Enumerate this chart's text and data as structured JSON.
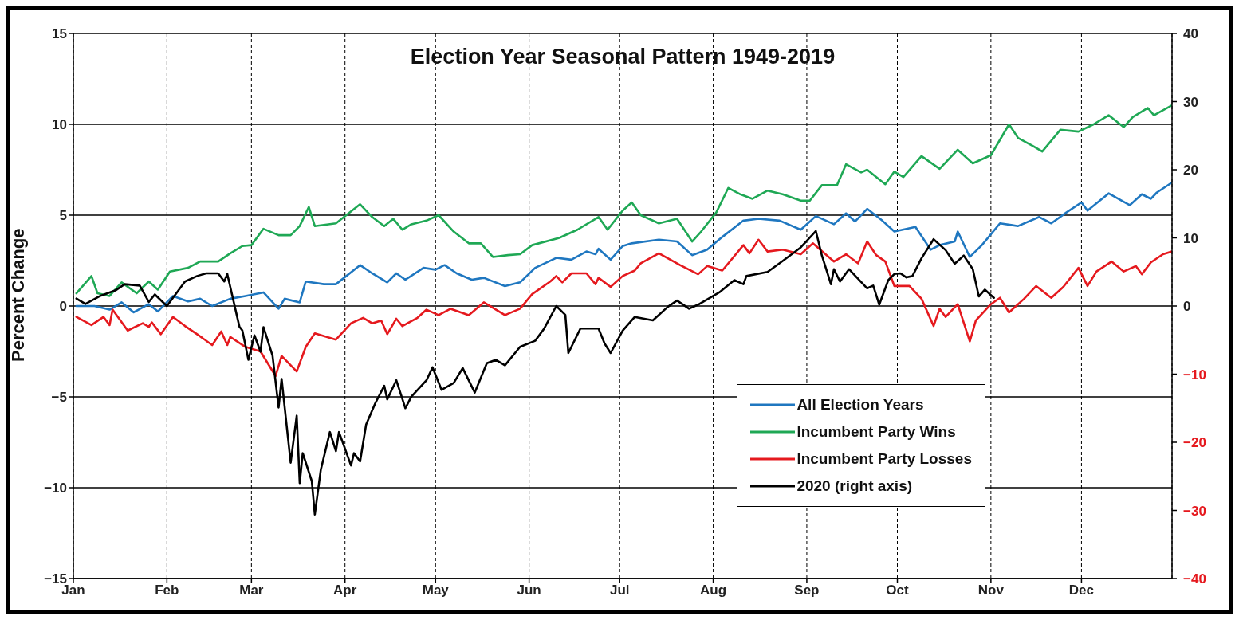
{
  "chart_data": {
    "type": "line",
    "title": "Election Year Seasonal Pattern 1949-2019",
    "ylabel": "Percent Change",
    "xlim": [
      "--01-01",
      "--12-31"
    ],
    "xticks": [
      {
        "value": "--01-01",
        "label": "Jan"
      },
      {
        "value": "--02-01",
        "label": "Feb"
      },
      {
        "value": "--03-01",
        "label": "Mar"
      },
      {
        "value": "--04-01",
        "label": "Apr"
      },
      {
        "value": "--05-01",
        "label": "May"
      },
      {
        "value": "--06-01",
        "label": "Jun"
      },
      {
        "value": "--07-01",
        "label": "Jul"
      },
      {
        "value": "--08-01",
        "label": "Aug"
      },
      {
        "value": "--09-01",
        "label": "Sep"
      },
      {
        "value": "--10-01",
        "label": "Oct"
      },
      {
        "value": "--11-01",
        "label": "Nov"
      },
      {
        "value": "--12-01",
        "label": "Dec"
      }
    ],
    "ylim": [
      -15,
      15
    ],
    "yticks": [
      15,
      10,
      5,
      0,
      {
        "value": -5,
        "label": "−5"
      },
      {
        "value": -10,
        "label": "−10"
      },
      {
        "value": -15,
        "label": "−15"
      }
    ],
    "y2lim": [
      -40,
      40
    ],
    "y2ticks": [
      40,
      30,
      20,
      10,
      0,
      {
        "value": -10,
        "label": "−10"
      },
      {
        "value": -20,
        "label": "−20"
      },
      {
        "value": -30,
        "label": "−30"
      },
      {
        "value": -40,
        "label": "−40"
      }
    ],
    "grid": true,
    "legend": "bottom right",
    "marker": "none",
    "line_style": "solid",
    "series": [
      {
        "name": "All Election Years",
        "color": "#1f77c0",
        "x": [
          "--01-02",
          "--01-08",
          "--01-13",
          "--01-17",
          "--01-21",
          "--01-26",
          "--01-29",
          "--02-03",
          "--02-08",
          "--02-12",
          "--02-16",
          "--02-22",
          "--02-27",
          "--03-05",
          "--03-10",
          "--03-12",
          "--03-17",
          "--03-19",
          "--03-25",
          "--03-29",
          "--04-06",
          "--04-10",
          "--04-15",
          "--04-18",
          "--04-21",
          "--04-27",
          "--05-01",
          "--05-04",
          "--05-08",
          "--05-13",
          "--05-17",
          "--05-24",
          "--05-29",
          "--06-03",
          "--06-10",
          "--06-15",
          "--06-20",
          "--06-23",
          "--06-24",
          "--06-28",
          "--07-02",
          "--07-05",
          "--07-14",
          "--07-20",
          "--07-25",
          "--07-30",
          "--08-04",
          "--08-11",
          "--08-16",
          "--08-23",
          "--08-30",
          "--09-04",
          "--09-10",
          "--09-14",
          "--09-17",
          "--09-21",
          "--09-26",
          "--09-30",
          "--10-07",
          "--10-12",
          "--10-15",
          "--10-20",
          "--10-21",
          "--10-25",
          "--10-29",
          "--11-04",
          "--11-10",
          "--11-17",
          "--11-21",
          "--11-26",
          "--12-01",
          "--12-03",
          "--12-10",
          "--12-17",
          "--12-21",
          "--12-24",
          "--12-26",
          "--12-31"
        ],
        "values": [
          0,
          0,
          -0.2,
          0.2,
          -0.35,
          0.1,
          -0.3,
          0.55,
          0.25,
          0.4,
          0,
          0.4,
          0.55,
          0.75,
          -0.15,
          0.4,
          0.2,
          1.35,
          1.2,
          1.2,
          2.25,
          1.8,
          1.3,
          1.8,
          1.45,
          2.1,
          2.0,
          2.25,
          1.8,
          1.45,
          1.55,
          1.1,
          1.3,
          2.1,
          2.65,
          2.55,
          3.0,
          2.85,
          3.15,
          2.55,
          3.3,
          3.45,
          3.65,
          3.55,
          2.8,
          3.1,
          3.8,
          4.7,
          4.8,
          4.7,
          4.2,
          4.95,
          4.5,
          5.1,
          4.65,
          5.35,
          4.7,
          4.1,
          4.35,
          3.1,
          3.35,
          3.55,
          4.1,
          2.7,
          3.35,
          4.55,
          4.4,
          4.9,
          4.55,
          5.15,
          5.7,
          5.25,
          6.2,
          5.55,
          6.15,
          5.9,
          6.25,
          6.8
        ]
      },
      {
        "name": "Incumbent Party Wins",
        "color": "#1fa855",
        "x": [
          "--01-02",
          "--01-07",
          "--01-09",
          "--01-13",
          "--01-17",
          "--01-22",
          "--01-26",
          "--01-29",
          "--02-02",
          "--02-08",
          "--02-12",
          "--02-18",
          "--02-22",
          "--02-26",
          "--03-01",
          "--03-05",
          "--03-10",
          "--03-14",
          "--03-17",
          "--03-20",
          "--03-22",
          "--03-29",
          "--04-06",
          "--04-10",
          "--04-14",
          "--04-17",
          "--04-20",
          "--04-23",
          "--04-28",
          "--05-02",
          "--05-07",
          "--05-12",
          "--05-16",
          "--05-20",
          "--05-25",
          "--05-29",
          "--06-02",
          "--06-11",
          "--06-17",
          "--06-24",
          "--06-27",
          "--07-02",
          "--07-05",
          "--07-08",
          "--07-14",
          "--07-20",
          "--07-25",
          "--07-28",
          "--08-02",
          "--08-06",
          "--08-10",
          "--08-14",
          "--08-19",
          "--08-24",
          "--08-30",
          "--09-02",
          "--09-06",
          "--09-11",
          "--09-14",
          "--09-19",
          "--09-21",
          "--09-27",
          "--09-30",
          "--10-03",
          "--10-09",
          "--10-15",
          "--10-21",
          "--10-26",
          "--11-01",
          "--11-07",
          "--11-10",
          "--11-15",
          "--11-18",
          "--11-24",
          "--11-30",
          "--12-05",
          "--12-10",
          "--12-15",
          "--12-18",
          "--12-23",
          "--12-25",
          "--12-31"
        ],
        "values": [
          0.7,
          1.65,
          0.7,
          0.55,
          1.3,
          0.7,
          1.35,
          0.9,
          1.9,
          2.1,
          2.45,
          2.45,
          2.9,
          3.3,
          3.35,
          4.25,
          3.9,
          3.9,
          4.4,
          5.45,
          4.4,
          4.55,
          5.6,
          4.9,
          4.4,
          4.8,
          4.2,
          4.5,
          4.7,
          5.0,
          4.1,
          3.45,
          3.45,
          2.7,
          2.8,
          2.85,
          3.35,
          3.75,
          4.2,
          4.9,
          4.2,
          5.25,
          5.7,
          5.0,
          4.55,
          4.8,
          3.55,
          4.1,
          5.15,
          6.5,
          6.15,
          5.9,
          6.35,
          6.15,
          5.8,
          5.8,
          6.65,
          6.65,
          7.8,
          7.35,
          7.5,
          6.7,
          7.4,
          7.1,
          8.25,
          7.55,
          8.6,
          7.85,
          8.3,
          10.0,
          9.25,
          8.8,
          8.5,
          9.7,
          9.6,
          10.0,
          10.5,
          9.85,
          10.4,
          10.9,
          10.5,
          11.05
        ]
      },
      {
        "name": "Incumbent Party Losses",
        "color": "#e5191e",
        "x": [
          "--01-02",
          "--01-07",
          "--01-11",
          "--01-13",
          "--01-14",
          "--01-19",
          "--01-24",
          "--01-26",
          "--01-27",
          "--01-30",
          "--02-03",
          "--02-07",
          "--02-11",
          "--02-16",
          "--02-19",
          "--02-21",
          "--02-22",
          "--02-27",
          "--03-04",
          "--03-09",
          "--03-11",
          "--03-16",
          "--03-19",
          "--03-22",
          "--03-29",
          "--04-03",
          "--04-07",
          "--04-10",
          "--04-13",
          "--04-15",
          "--04-18",
          "--04-20",
          "--04-25",
          "--04-28",
          "--05-02",
          "--05-06",
          "--05-12",
          "--05-17",
          "--05-24",
          "--05-29",
          "--06-02",
          "--06-08",
          "--06-10",
          "--06-12",
          "--06-15",
          "--06-20",
          "--06-23",
          "--06-24",
          "--06-28",
          "--07-02",
          "--07-06",
          "--07-08",
          "--07-14",
          "--07-21",
          "--07-27",
          "--07-30",
          "--08-04",
          "--08-11",
          "--08-13",
          "--08-16",
          "--08-19",
          "--08-24",
          "--08-30",
          "--09-03",
          "--09-10",
          "--09-14",
          "--09-18",
          "--09-21",
          "--09-24",
          "--09-27",
          "--09-30",
          "--10-05",
          "--10-09",
          "--10-13",
          "--10-15",
          "--10-17",
          "--10-21",
          "--10-25",
          "--10-27",
          "--11-01",
          "--11-04",
          "--11-07",
          "--11-12",
          "--11-16",
          "--11-21",
          "--11-25",
          "--11-30",
          "--12-03",
          "--12-06",
          "--12-11",
          "--12-15",
          "--12-19",
          "--12-21",
          "--12-24",
          "--12-28",
          "--12-31"
        ],
        "values": [
          -0.6,
          -1.05,
          -0.6,
          -1.05,
          -0.2,
          -1.35,
          -0.95,
          -1.15,
          -0.9,
          -1.55,
          -0.6,
          -1.1,
          -1.55,
          -2.15,
          -1.4,
          -2.15,
          -1.7,
          -2.25,
          -2.5,
          -3.85,
          -2.75,
          -3.6,
          -2.25,
          -1.5,
          -1.85,
          -0.95,
          -0.65,
          -0.95,
          -0.8,
          -1.55,
          -0.7,
          -1.1,
          -0.65,
          -0.2,
          -0.5,
          -0.15,
          -0.5,
          0.2,
          -0.5,
          -0.15,
          0.65,
          1.35,
          1.65,
          1.3,
          1.8,
          1.8,
          1.2,
          1.55,
          1.05,
          1.65,
          1.95,
          2.35,
          2.9,
          2.25,
          1.75,
          2.2,
          1.95,
          3.35,
          2.9,
          3.65,
          3.0,
          3.1,
          2.85,
          3.45,
          2.45,
          2.85,
          2.35,
          3.55,
          2.8,
          2.45,
          1.1,
          1.1,
          0.4,
          -1.1,
          -0.15,
          -0.6,
          0.1,
          -1.95,
          -0.8,
          0.1,
          0.45,
          -0.35,
          0.4,
          1.1,
          0.45,
          1.05,
          2.1,
          1.1,
          1.9,
          2.45,
          1.9,
          2.2,
          1.75,
          2.4,
          2.85,
          3.0
        ]
      },
      {
        "name": "2020 (right axis)",
        "color": "#000000",
        "axis": "y2",
        "x": [
          "--01-02",
          "--01-05",
          "--01-10",
          "--01-15",
          "--01-18",
          "--01-23",
          "--01-26",
          "--01-28",
          "--02-01",
          "--02-07",
          "--02-11",
          "--02-14",
          "--02-18",
          "--02-20",
          "--02-21",
          "--02-25",
          "--02-26",
          "--02-28",
          "--03-02",
          "--03-04",
          "--03-05",
          "--03-08",
          "--03-10",
          "--03-11",
          "--03-14",
          "--03-16",
          "--03-17",
          "--03-18",
          "--03-21",
          "--03-22",
          "--03-24",
          "--03-27",
          "--03-29",
          "--03-30",
          "--04-03",
          "--04-04",
          "--04-06",
          "--04-08",
          "--04-11",
          "--04-14",
          "--04-15",
          "--04-18",
          "--04-21",
          "--04-23",
          "--04-28",
          "--04-30",
          "--05-03",
          "--05-07",
          "--05-10",
          "--05-14",
          "--05-18",
          "--05-21",
          "--05-24",
          "--05-29",
          "--06-03",
          "--06-06",
          "--06-10",
          "--06-13",
          "--06-14",
          "--06-18",
          "--06-24",
          "--06-26",
          "--06-28",
          "--07-02",
          "--07-06",
          "--07-12",
          "--07-17",
          "--07-20",
          "--07-24",
          "--07-27",
          "--08-03",
          "--08-08",
          "--08-11",
          "--08-12",
          "--08-19",
          "--08-24",
          "--08-30",
          "--09-04",
          "--09-06",
          "--09-09",
          "--09-10",
          "--09-12",
          "--09-15",
          "--09-21",
          "--09-23",
          "--09-25",
          "--09-28",
          "--09-30",
          "--10-02",
          "--10-04",
          "--10-06",
          "--10-09",
          "--10-13",
          "--10-17",
          "--10-20",
          "--10-23",
          "--10-26",
          "--10-28",
          "--10-30",
          "--11-02"
        ],
        "values": [
          1.1,
          0.3,
          1.5,
          2.3,
          3.2,
          3.0,
          0.6,
          1.7,
          0,
          3.6,
          4.4,
          4.8,
          4.8,
          3.6,
          4.7,
          -3.0,
          -3.6,
          -7.9,
          -4.3,
          -6.7,
          -3.1,
          -7.3,
          -14.9,
          -10.7,
          -23.0,
          -16.1,
          -26.0,
          -21.6,
          -25.7,
          -30.6,
          -24.0,
          -18.5,
          -21.3,
          -18.5,
          -23.4,
          -21.6,
          -22.8,
          -17.4,
          -14.3,
          -11.7,
          -13.7,
          -10.9,
          -15.0,
          -13.3,
          -10.9,
          -9.0,
          -12.3,
          -11.3,
          -9.1,
          -12.7,
          -8.4,
          -7.9,
          -8.7,
          -6.0,
          -5.1,
          -3.3,
          0,
          -1.3,
          -6.9,
          -3.3,
          -3.3,
          -5.5,
          -6.9,
          -3.6,
          -1.6,
          -2.1,
          -0.1,
          0.8,
          -0.4,
          0.2,
          2.0,
          3.8,
          3.2,
          4.4,
          5.0,
          6.6,
          8.6,
          11.0,
          7.4,
          3.2,
          5.4,
          3.6,
          5.4,
          2.6,
          3.0,
          0.2,
          3.8,
          4.7,
          4.8,
          4.2,
          4.4,
          7.0,
          9.8,
          8.2,
          6.2,
          7.4,
          5.4,
          1.4,
          2.4,
          1.2
        ]
      }
    ]
  }
}
